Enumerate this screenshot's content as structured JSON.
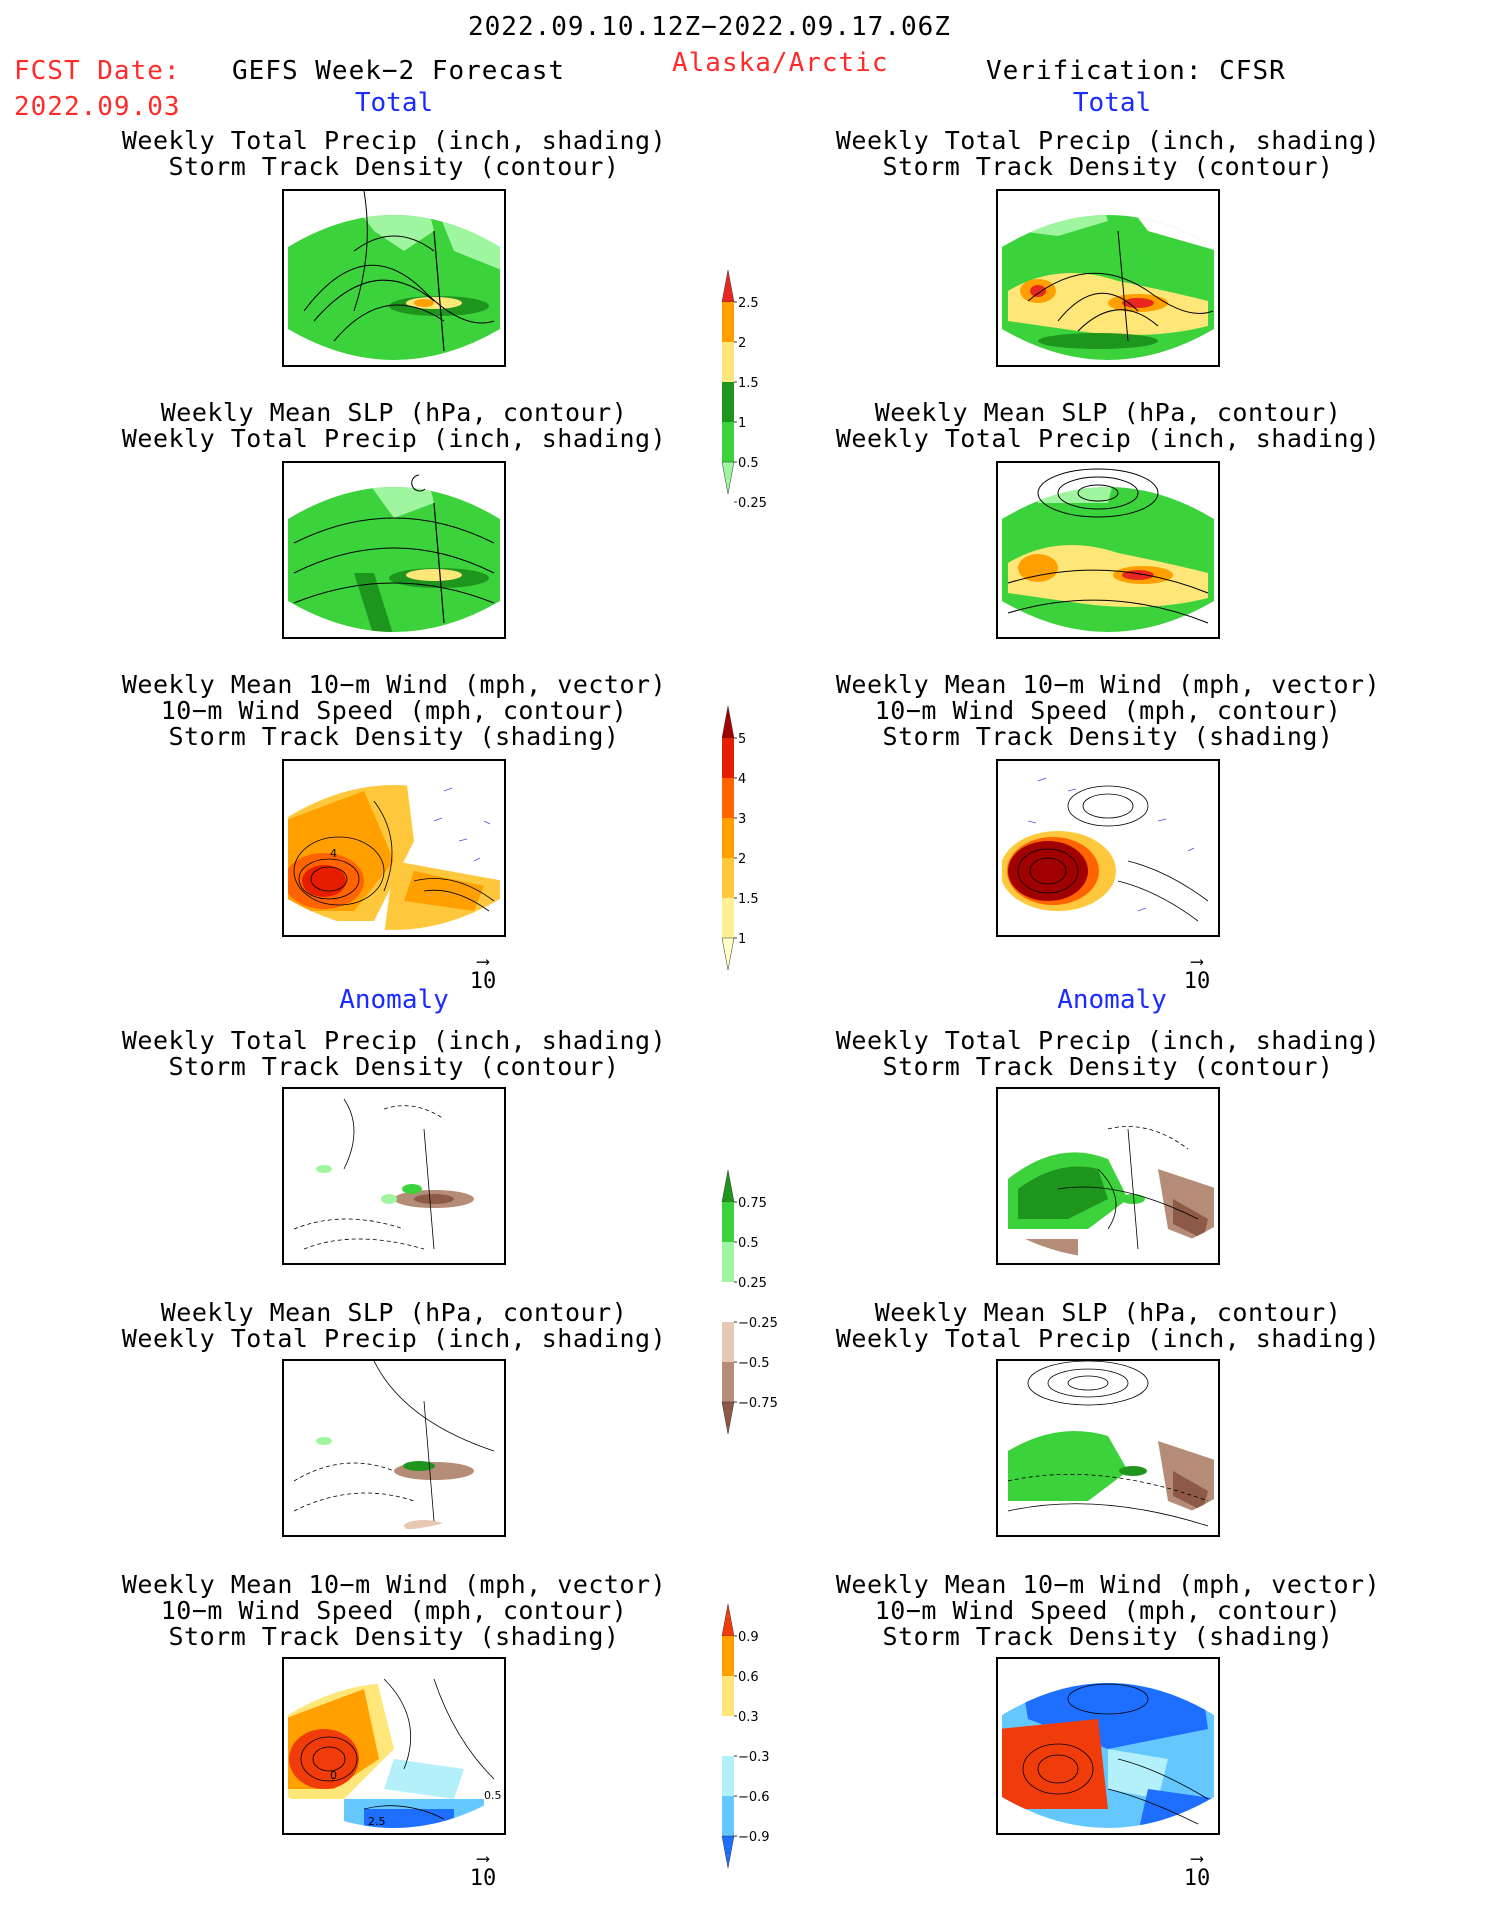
{
  "header": {
    "period": "2022.09.10.12Z−2022.09.17.06Z",
    "fcst_label": "FCST Date:",
    "fcst_date": "2022.09.03",
    "model": "GEFS Week−2 Forecast",
    "region": "Alaska/Arctic",
    "verification": "Verification: CFSR"
  },
  "sections": {
    "total": "Total",
    "anomaly": "Anomaly"
  },
  "titles": {
    "precip_track": [
      "Weekly Total Precip (inch, shading)",
      "Storm Track Density (contour)"
    ],
    "slp_precip": [
      "Weekly Mean SLP (hPa, contour)",
      "Weekly Total Precip (inch, shading)"
    ],
    "wind_track": [
      "Weekly Mean 10−m Wind (mph, vector)",
      "10−m Wind Speed (mph, contour)",
      "Storm Track Density (shading)"
    ]
  },
  "wind_reference": "10",
  "colorbars": {
    "precip_total": {
      "labels": [
        "2.5",
        "2",
        "1.5",
        "1",
        "0.5",
        "0.25"
      ],
      "colors": [
        "#e8281e",
        "#ffa000",
        "#ffe678",
        "#1e961e",
        "#3cd23c",
        "#a0f5a0"
      ]
    },
    "track_total": {
      "labels": [
        "5",
        "4",
        "3",
        "2",
        "1.5",
        "1"
      ],
      "colors": [
        "#a00000",
        "#e61e00",
        "#ff6400",
        "#ffa000",
        "#ffc83c",
        "#fff096",
        "#ffffc8"
      ]
    },
    "precip_anom": {
      "labels": [
        "0.75",
        "0.5",
        "0.25",
        "−0.25",
        "−0.5",
        "−0.75"
      ],
      "colors": [
        "#1e961e",
        "#3cd23c",
        "#a0f5a0",
        "#ffffff",
        "#e6c8b4",
        "#b48c78",
        "#8c5a46"
      ]
    },
    "track_anom": {
      "labels": [
        "0.9",
        "0.6",
        "0.3",
        "−0.3",
        "−0.6",
        "−0.9"
      ],
      "colors": [
        "#f03c0a",
        "#ffa000",
        "#ffe678",
        "#ffffff",
        "#b4f0fa",
        "#64c8ff",
        "#1e6eff"
      ]
    }
  },
  "map_labels": {
    "wind_total_left": "4",
    "wind_anom_left_a": "0",
    "wind_anom_left_b": "2.5",
    "wind_anom_left_c": "0.5"
  }
}
